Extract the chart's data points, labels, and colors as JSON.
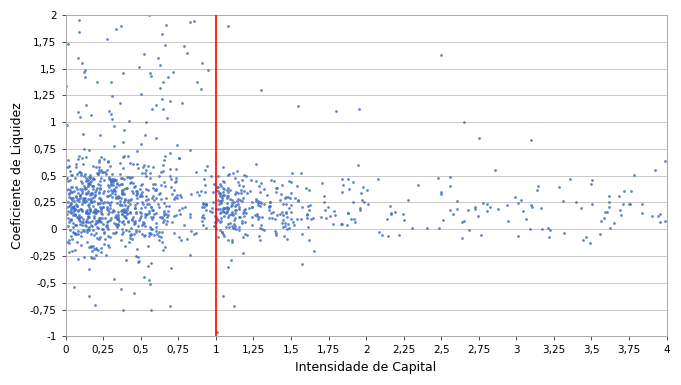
{
  "xlabel": "Intensidade de Capital",
  "ylabel": "Coeficiente de Liquidez",
  "xlim": [
    0,
    4
  ],
  "ylim": [
    -1,
    2
  ],
  "xticks": [
    0,
    0.25,
    0.5,
    0.75,
    1,
    1.25,
    1.5,
    1.75,
    2,
    2.25,
    2.5,
    2.75,
    3,
    3.25,
    3.5,
    3.75,
    4
  ],
  "yticks": [
    -1,
    -0.75,
    -0.5,
    -0.25,
    0,
    0.25,
    0.5,
    0.75,
    1,
    1.25,
    1.5,
    1.75,
    2
  ],
  "vline_x": 1.0,
  "vline_color": "#FF0000",
  "dot_color": "#4472C4",
  "dot_size": 4,
  "background_color": "#FFFFFF",
  "grid_color": "#C0C0C0",
  "seed": 42,
  "xlabel_fontsize": 9,
  "ylabel_fontsize": 9,
  "tick_fontsize": 7.5,
  "border_color": "#AAAAAA"
}
